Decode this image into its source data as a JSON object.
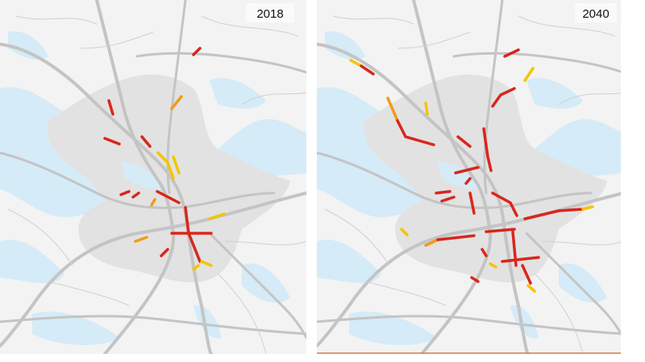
{
  "panels": [
    {
      "label": "2018"
    },
    {
      "label": "2040"
    }
  ]
}
